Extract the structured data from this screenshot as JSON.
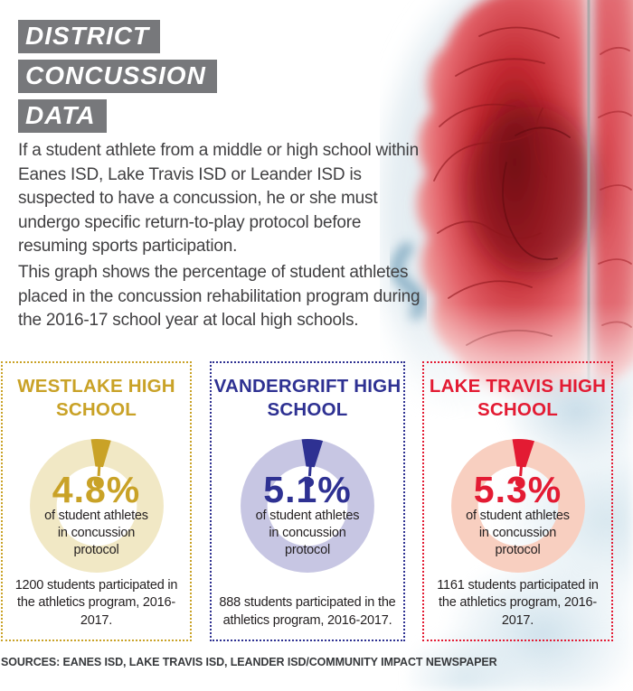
{
  "header": {
    "title_lines": [
      "DISTRICT",
      "CONCUSSION",
      "DATA"
    ],
    "block_bg": "#77787b",
    "text_color": "#ffffff"
  },
  "intro": {
    "paragraph1": "If a student athlete from a middle or high school within Eanes ISD, Lake Travis ISD or Leander ISD is suspected to have a concussion, he or she must undergo specific return-to-play protocol before resuming sports participation.",
    "paragraph2": "This graph shows the percentage of student athletes placed in the concussion rehabilitation program during the 2016-17 school year at local high schools."
  },
  "chart_data": {
    "type": "donut",
    "title": "District Concussion Data",
    "center_label_lines": [
      "of student athletes",
      "in concussion",
      "protocol"
    ],
    "series": [
      {
        "school": "WESTLAKE HIGH SCHOOL",
        "percent": 4.8,
        "percent_label": "4.8%",
        "note": "1200 students participated in the athletics program, 2016-2017.",
        "accent_color": "#c9a227",
        "ring_color": "#f1e8c5"
      },
      {
        "school": "VANDERGRIFT HIGH SCHOOL",
        "percent": 5.1,
        "percent_label": "5.1%",
        "note": "888 students participated in the athletics program, 2016-2017.",
        "accent_color": "#2e3192",
        "ring_color": "#c7c6e3"
      },
      {
        "school": "LAKE TRAVIS HIGH SCHOOL",
        "percent": 5.3,
        "percent_label": "5.3%",
        "note": "1161 students participated in the athletics program, 2016-2017.",
        "accent_color": "#e31b33",
        "ring_color": "#f8cfc0"
      }
    ]
  },
  "footer": {
    "sources": "SOURCES: EANES ISD, LAKE TRAVIS ISD, LEANDER ISD/COMMUNITY IMPACT NEWSPAPER"
  },
  "illustration": {
    "name": "concussed-brain-watercolor",
    "brain_core": "#7a0f14",
    "brain_mid": "#c22830",
    "brain_light": "#f2aaa9",
    "head_wash": "#e4edf2",
    "ear": "#6f9fb9",
    "divider": "#a5a5a5"
  }
}
